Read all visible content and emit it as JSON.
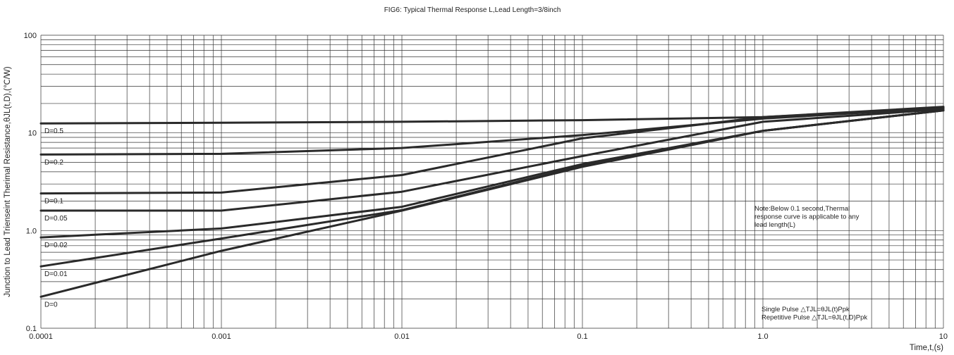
{
  "chart_data": {
    "type": "line",
    "title": "FIG6:  Typical Thermal Response L,Lead Length=3/8inch",
    "xlabel": "Time,t,(s)",
    "ylabel": "Junction to Lead Trienseint Therimal Resistance,θJL(t,D),(℃/W)",
    "x_scale": "log",
    "y_scale": "log",
    "xlim": [
      0.0001,
      10
    ],
    "ylim": [
      0.1,
      100
    ],
    "grid": true,
    "x_ticks": [
      {
        "value": 0.0001,
        "label": "0.0001"
      },
      {
        "value": 0.001,
        "label": "0.001"
      },
      {
        "value": 0.01,
        "label": "0.01"
      },
      {
        "value": 0.1,
        "label": "0.1"
      },
      {
        "value": 1,
        "label": "1.0"
      },
      {
        "value": 10,
        "label": "10"
      }
    ],
    "y_ticks": [
      {
        "value": 0.1,
        "label": "0.1"
      },
      {
        "value": 1,
        "label": "1.0"
      },
      {
        "value": 10,
        "label": "10"
      },
      {
        "value": 100,
        "label": "100"
      }
    ],
    "series": [
      {
        "name": "D=0.5",
        "x": [
          0.0001,
          0.001,
          0.01,
          0.1,
          1,
          10
        ],
        "y": [
          12.5,
          12.7,
          13.0,
          13.5,
          14.5,
          18.5
        ]
      },
      {
        "name": "D=0.2",
        "x": [
          0.0001,
          0.001,
          0.01,
          0.1,
          1,
          10
        ],
        "y": [
          6.0,
          6.1,
          7.0,
          9.5,
          14.0,
          18.0
        ]
      },
      {
        "name": "D=0.1",
        "x": [
          0.0001,
          0.001,
          0.01,
          0.1,
          1,
          10
        ],
        "y": [
          2.4,
          2.45,
          3.7,
          8.8,
          14.5,
          18.0
        ]
      },
      {
        "name": "D=0.05",
        "x": [
          0.0001,
          0.001,
          0.01,
          0.1,
          1,
          10
        ],
        "y": [
          1.6,
          1.6,
          2.5,
          5.8,
          13.0,
          17.5
        ]
      },
      {
        "name": "D=0.02",
        "x": [
          0.0001,
          0.001,
          0.01,
          0.1,
          1,
          10
        ],
        "y": [
          0.85,
          1.05,
          1.75,
          4.8,
          10.5,
          17.0
        ]
      },
      {
        "name": "D=0.01",
        "x": [
          0.0001,
          0.001,
          0.01,
          0.1,
          1,
          10
        ],
        "y": [
          0.43,
          0.83,
          1.62,
          4.6,
          10.5,
          17.0
        ]
      },
      {
        "name": "D=0",
        "x": [
          0.0001,
          0.001,
          0.01,
          0.1,
          1,
          10
        ],
        "y": [
          0.21,
          0.62,
          1.6,
          4.5,
          10.5,
          17.0
        ]
      }
    ],
    "annotations": [
      {
        "lines": [
          "Note:Below 0.1 second,Thermal",
          "response curve is applicable to any",
          "lead length(L)"
        ]
      },
      {
        "lines": [
          "Single Pulse △TJL=θJL(t)Ppk",
          "Repetitive  Pulse △TJL=θJL(t,D)Ppk"
        ]
      }
    ]
  }
}
